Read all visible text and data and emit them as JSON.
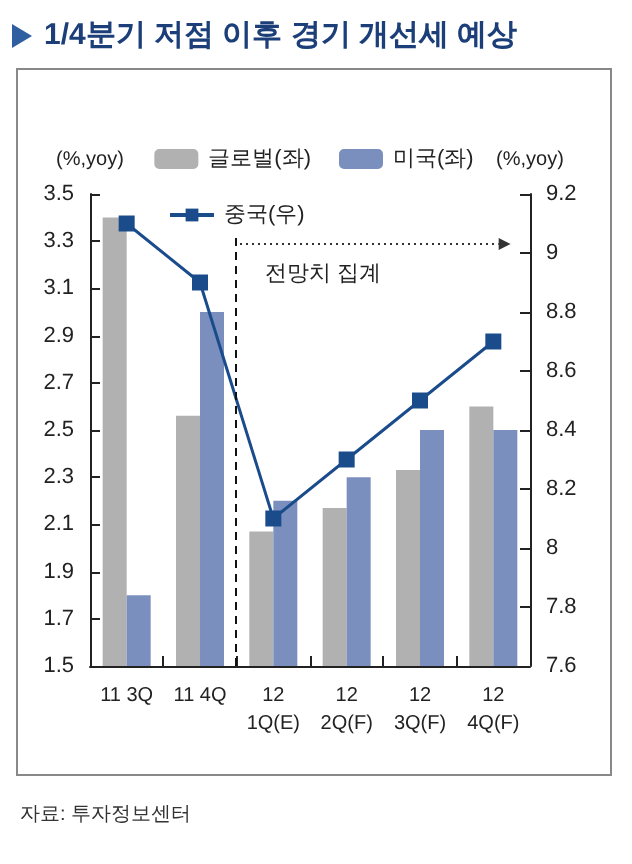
{
  "chart_data": {
    "type": "bar",
    "title": "1/4분기 저점 이후 경기 개선세 예상",
    "categories": [
      "11 3Q",
      "11 4Q",
      "12\n1Q(E)",
      "12\n2Q(F)",
      "12\n3Q(F)",
      "12\n4Q(F)"
    ],
    "series": [
      {
        "name": "글로벌(좌)",
        "color": "#b1b1b1",
        "values": [
          3.4,
          2.56,
          2.07,
          2.17,
          2.33,
          2.6
        ]
      },
      {
        "name": "미국(좌)",
        "color": "#7b8fbe",
        "values": [
          1.8,
          3.0,
          2.2,
          2.3,
          2.5,
          2.5
        ]
      },
      {
        "name": "중국(우)",
        "type": "line",
        "axis": "y2",
        "color": "#1a4c8c",
        "values": [
          9.1,
          8.9,
          8.1,
          8.3,
          8.5,
          8.7
        ]
      }
    ],
    "ylabel": "(%,yoy)",
    "y2label": "(%,yoy)",
    "ylim": [
      1.5,
      3.5
    ],
    "yticks": [
      1.5,
      1.7,
      1.9,
      2.1,
      2.3,
      2.5,
      2.7,
      2.9,
      3.1,
      3.3,
      3.5
    ],
    "y2lim": [
      7.6,
      9.2
    ],
    "y2ticks": [
      7.6,
      7.8,
      8,
      8.2,
      8.4,
      8.6,
      8.8,
      9,
      9.2
    ],
    "marker": "square",
    "legend": "top",
    "grid": false,
    "annotations": [
      "전망치 집계",
      "자료: 투자정보센터"
    ]
  }
}
